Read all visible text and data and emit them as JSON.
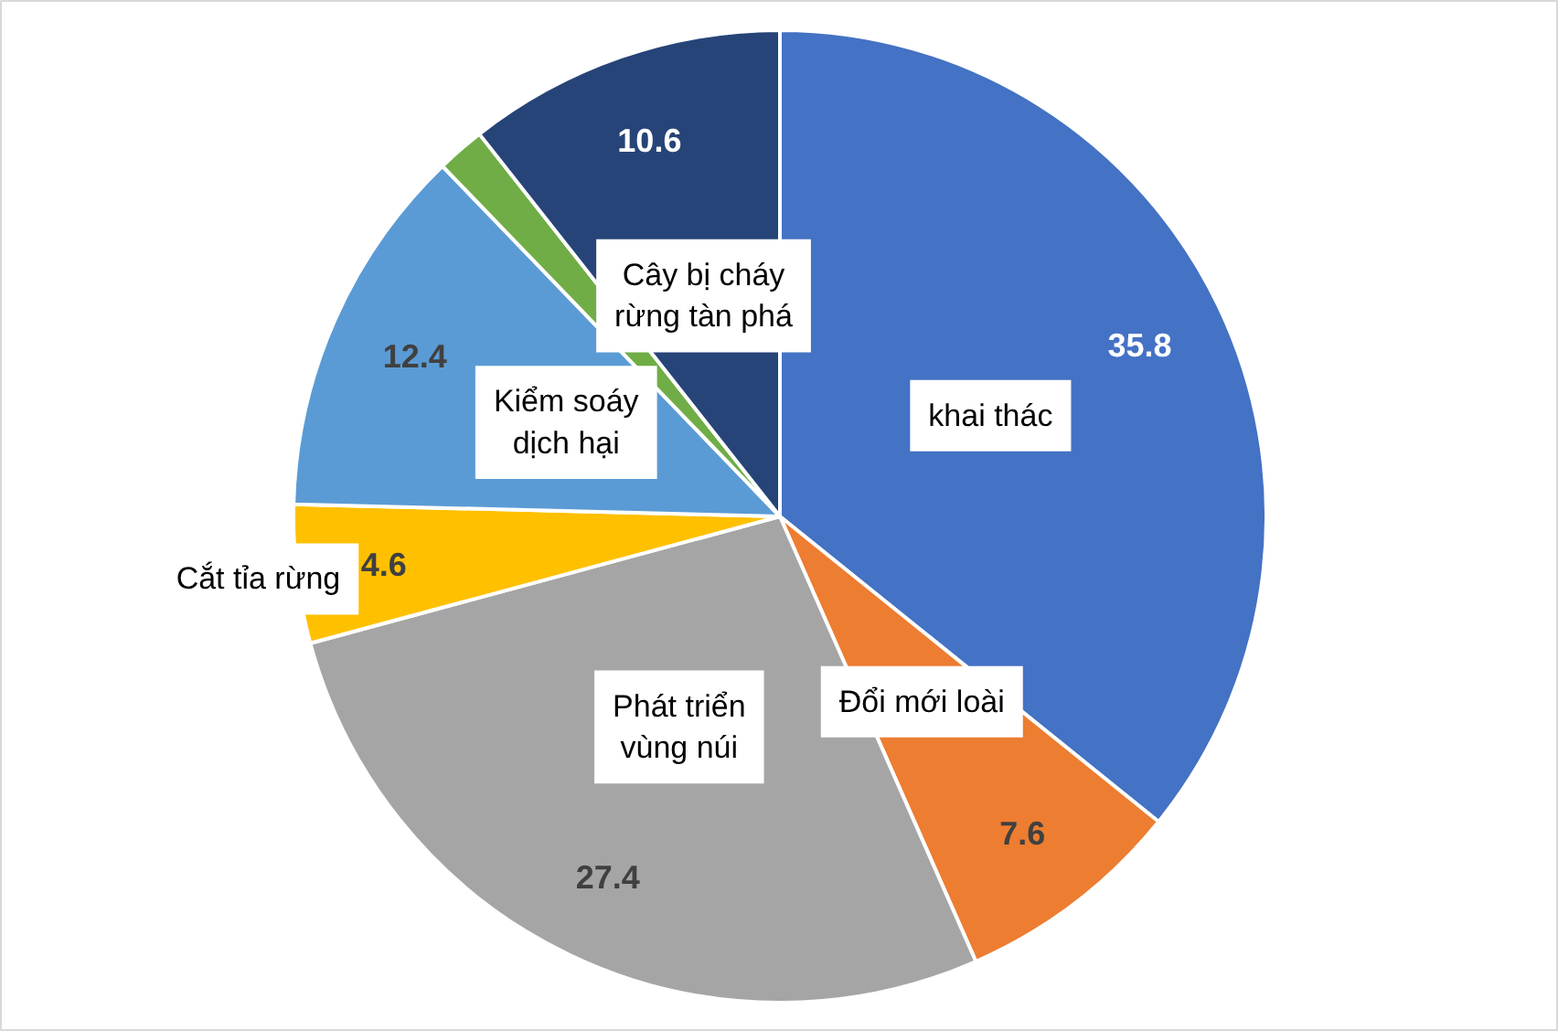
{
  "chart_data": {
    "type": "pie",
    "categories": [
      "khai thác",
      "Đổi mới loài",
      "Phát triển vùng núi",
      "Cắt tỉa rừng",
      "Kiểm soáy dịch hại",
      null,
      "Cây bị cháy rừng tàn phá"
    ],
    "values": [
      35.8,
      7.6,
      27.4,
      4.6,
      12.4,
      1.6,
      10.6
    ],
    "colors": [
      "#4472c4",
      "#ed7d31",
      "#a5a5a5",
      "#ffc000",
      "#5b9bd5",
      "#70ad47",
      "#264478"
    ],
    "value_labels": [
      "35.8",
      "7.6",
      "27.4",
      "4.6",
      "12.4",
      null,
      "10.6"
    ]
  }
}
